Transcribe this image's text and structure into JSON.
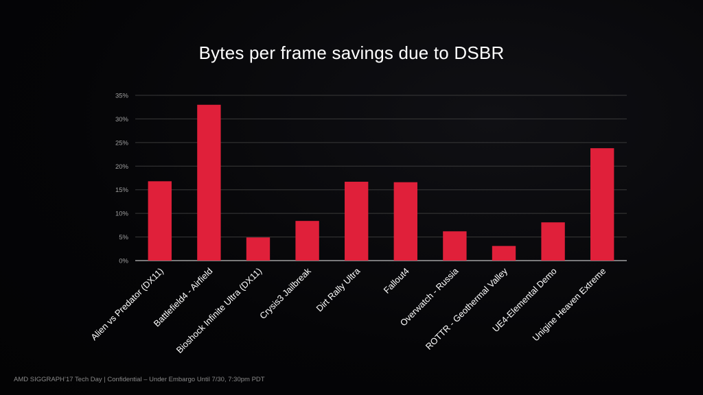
{
  "slide": {
    "footer": "AMD SIGGRAPH’17 Tech Day | Confidential – Under Embargo Until 7/30, 7:30pm PDT"
  },
  "chart_data": {
    "type": "bar",
    "title": "Bytes per frame savings due to DSBR",
    "xlabel": "",
    "ylabel": "",
    "categories": [
      "Alien vs Predator (DX11)",
      "Battlefield4 - Airfield",
      "Bioshock Infinite Ultra (DX11)",
      "Crysis3 Jailbreak",
      "Dirt Rally Ultra",
      "Fallout4",
      "Overwatch - Russia",
      "ROTTR - Geothermal Valley",
      "UE4-Elemental Demo",
      "Unigine Heaven Extreme"
    ],
    "values": [
      16.8,
      33.0,
      4.9,
      8.4,
      16.7,
      16.6,
      6.2,
      3.1,
      8.1,
      23.8
    ],
    "ylim": [
      0,
      35
    ],
    "yticks": [
      0,
      5,
      10,
      15,
      20,
      25,
      30,
      35
    ],
    "ytick_labels": [
      "0%",
      "5%",
      "10%",
      "15%",
      "20%",
      "25%",
      "30%",
      "35%"
    ],
    "grid": true,
    "legend": "none",
    "colors": {
      "bar": "#e0203a",
      "grid": "#3a3a3a",
      "axis": "#bfbfbf",
      "text": "#ffffff",
      "tick": "#a0a0a0"
    }
  }
}
